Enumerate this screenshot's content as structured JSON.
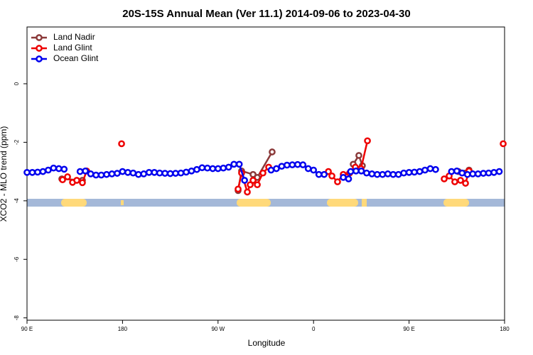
{
  "chart_data": {
    "type": "line",
    "title": "20S-15S Annual Mean (Ver 11.1)   2014-09-06 to 2023-04-30",
    "x_label": "Longitude",
    "y_label": "XCO2 - MLO trend (ppm)",
    "xlim": [
      90,
      540
    ],
    "ylim": [
      -8.08,
      1.94
    ],
    "xticks": [
      {
        "value": 90,
        "label": "90 E"
      },
      180,
      {
        "value": 270,
        "label": "90 W"
      },
      {
        "value": 360,
        "label": "0"
      },
      {
        "value": 450,
        "label": "90 E"
      },
      {
        "value": 540,
        "label": "180"
      }
    ],
    "yticks": [
      0,
      -2,
      -4,
      -6,
      -8
    ],
    "legend": "top-left",
    "series": [
      {
        "name": "Land Nadir",
        "color": "#8b3a3a",
        "x": [
          122.8,
          142.2,
          null,
          288.9,
          292.2,
          303,
          307,
          321,
          null,
          397.4,
          402.7,
          406,
          null,
          496.5,
          506.5
        ],
        "values": [
          -3.25,
          -3.3,
          null,
          -3.65,
          -2.98,
          -3.1,
          -3.2,
          -2.33,
          null,
          -2.75,
          -2.45,
          -2.8,
          null,
          -3.0,
          -2.95
        ]
      },
      {
        "name": "Land Glint",
        "color": "#ee0000",
        "x": [
          123.5,
          128.2,
          132.9,
          136.9,
          142.2,
          146.2,
          null,
          179.1,
          null,
          288.9,
          292.2,
          297.6,
          300.3,
          303,
          307,
          312.3,
          317.7,
          null,
          374,
          377.3,
          382.6,
          388,
          394,
          399.4,
          404.7,
          410.8,
          null,
          483.1,
          487.8,
          493.1,
          498.5,
          503.2,
          506.5,
          null,
          538.7
        ],
        "values": [
          -3.28,
          -3.18,
          -3.37,
          -3.3,
          -3.38,
          -2.98,
          null,
          -2.05,
          null,
          -3.6,
          -3.05,
          -3.7,
          -3.45,
          -3.3,
          -3.45,
          -3.05,
          -2.85,
          null,
          -3.0,
          -3.15,
          -3.35,
          -3.1,
          -3.05,
          -2.85,
          -2.9,
          -1.95,
          null,
          -3.25,
          -3.15,
          -3.35,
          -3.3,
          -3.4,
          -2.98,
          null,
          -2.05
        ]
      },
      {
        "name": "Ocean Glint",
        "color": "#0000ee",
        "x": [
          90,
          95,
          100,
          105,
          110,
          115,
          120,
          125,
          null,
          140,
          145,
          150,
          155,
          160,
          165,
          170,
          175,
          180,
          185,
          190,
          195,
          200,
          205,
          210,
          215,
          220,
          225,
          230,
          235,
          240,
          245,
          250,
          255,
          260,
          265,
          270,
          275,
          280,
          285,
          290,
          295,
          null,
          320,
          325,
          330,
          335,
          340,
          345,
          350,
          355,
          360,
          365,
          370,
          null,
          388,
          393,
          395,
          400,
          405,
          410,
          415,
          420,
          425,
          430,
          435,
          440,
          445,
          450,
          455,
          460,
          465,
          470,
          475,
          null,
          490,
          495,
          500,
          505,
          510,
          515,
          520,
          525,
          530,
          535
        ],
        "values": [
          -3.03,
          -3.03,
          -3.02,
          -3.0,
          -2.95,
          -2.88,
          -2.9,
          -2.92,
          null,
          -3.0,
          -2.98,
          -3.08,
          -3.12,
          -3.12,
          -3.1,
          -3.08,
          -3.06,
          -3.0,
          -3.03,
          -3.05,
          -3.1,
          -3.08,
          -3.03,
          -3.03,
          -3.05,
          -3.06,
          -3.07,
          -3.06,
          -3.05,
          -3.02,
          -2.98,
          -2.93,
          -2.87,
          -2.88,
          -2.9,
          -2.9,
          -2.88,
          -2.85,
          -2.75,
          -2.75,
          -3.3,
          null,
          -2.95,
          -2.9,
          -2.82,
          -2.78,
          -2.77,
          -2.76,
          -2.77,
          -2.9,
          -2.95,
          -3.1,
          -3.1,
          null,
          -3.2,
          -3.25,
          -3.0,
          -2.98,
          -2.98,
          -3.05,
          -3.08,
          -3.1,
          -3.1,
          -3.08,
          -3.1,
          -3.1,
          -3.05,
          -3.03,
          -3.02,
          -3.0,
          -2.95,
          -2.9,
          -2.93,
          null,
          -3.0,
          -2.98,
          -3.05,
          -3.1,
          -3.08,
          -3.08,
          -3.06,
          -3.05,
          -3.03,
          -3.0
        ]
      }
    ]
  }
}
